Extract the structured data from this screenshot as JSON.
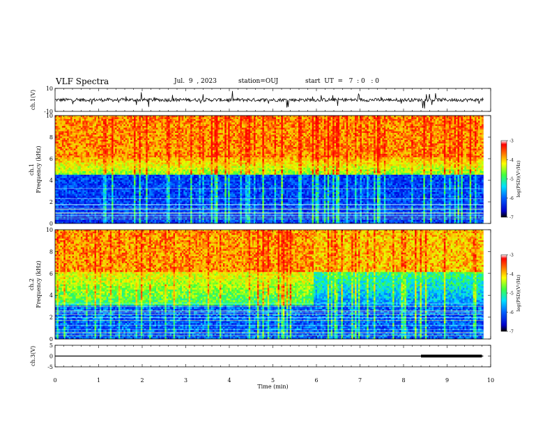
{
  "header": {
    "title": "VLF Spectra",
    "date": "Jul.  9  , 2023",
    "station": "station=OUJ",
    "start": "start  UT  =   7  : 0   : 0"
  },
  "chart_data": [
    {
      "type": "line",
      "panel": "ch1-waveform",
      "ylabel": "ch.1(V)",
      "ylim": [
        -10,
        10
      ],
      "yticks": [
        "10",
        "-10"
      ],
      "xlim": [
        0,
        10
      ],
      "baseline": 0
    },
    {
      "type": "heatmap",
      "panel": "ch1-spectrogram",
      "ylabel": "ch.1\nFrequency  (kHz)",
      "ylim": [
        0,
        10
      ],
      "yticks": [
        "0",
        "2",
        "4",
        "6",
        "8",
        "10"
      ],
      "xlim": [
        0,
        10
      ],
      "colorbar": {
        "label": "log(PSD)(V²/Hz)",
        "ticks": [
          "-3",
          "-4",
          "-5",
          "-6",
          "-7"
        ],
        "range": [
          -7,
          -3
        ]
      }
    },
    {
      "type": "heatmap",
      "panel": "ch2-spectrogram",
      "ylabel": "ch.2\nFrequency  (kHz)",
      "ylim": [
        0,
        10
      ],
      "yticks": [
        "0",
        "2",
        "4",
        "6",
        "8",
        "10"
      ],
      "xlim": [
        0,
        10
      ],
      "colorbar": {
        "label": "log(PSD)(V²/Hz)",
        "ticks": [
          "-3",
          "-4",
          "-5",
          "-6",
          "-7"
        ],
        "range": [
          -7,
          -3
        ]
      }
    },
    {
      "type": "line",
      "panel": "ch3-waveform",
      "ylabel": "ch.3(V)",
      "ylim": [
        -5,
        5
      ],
      "yticks": [
        "5",
        "0",
        "-5"
      ],
      "xlim": [
        0,
        10
      ],
      "baseline": 0,
      "thick_segment": [
        8.4,
        9.8
      ]
    }
  ],
  "xaxis": {
    "label": "Time  (min)",
    "ticks": [
      "0",
      "1",
      "2",
      "3",
      "4",
      "5",
      "6",
      "7",
      "8",
      "9",
      "10"
    ],
    "data_end": 9.83
  }
}
